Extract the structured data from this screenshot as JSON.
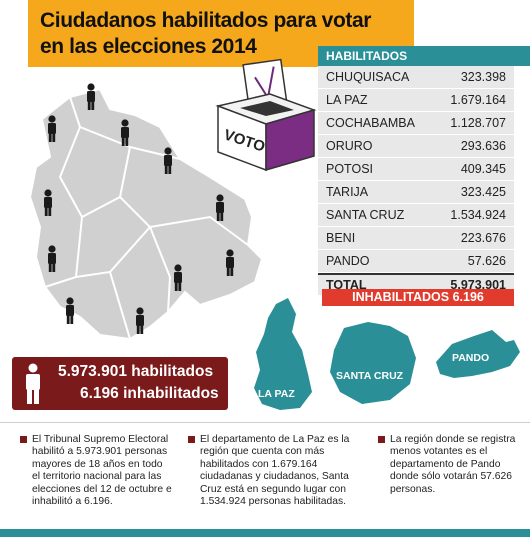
{
  "header": {
    "title_line1": "Ciudadanos habilitados para votar",
    "title_line2": "en las elecciones 2014"
  },
  "ballot": {
    "label": "VOTO"
  },
  "table": {
    "header": "HABILITADOS",
    "rows": [
      {
        "name": "CHUQUISACA",
        "value": "323.398"
      },
      {
        "name": "LA PAZ",
        "value": "1.679.164"
      },
      {
        "name": "COCHABAMBA",
        "value": "1.128.707"
      },
      {
        "name": "ORURO",
        "value": "293.636"
      },
      {
        "name": "POTOSI",
        "value": "409.345"
      },
      {
        "name": "TARIJA",
        "value": "323.425"
      },
      {
        "name": "SANTA CRUZ",
        "value": "1.534.924"
      },
      {
        "name": "BENI",
        "value": "223.676"
      },
      {
        "name": "PANDO",
        "value": "57.626"
      }
    ],
    "total_label": "TOTAL",
    "total_value": "5.973.901",
    "inhabilitados": "INHABILITADOS 6.196"
  },
  "summary": {
    "habilitados": "5.973.901 habilitados",
    "inhabilitados": "6.196 inhabilitados"
  },
  "regions": {
    "la_paz": "LA PAZ",
    "santa_cruz": "SANTA CRUZ",
    "pando": "PANDO"
  },
  "colors": {
    "orange": "#f5a81c",
    "teal": "#2a8f97",
    "maroon": "#7b1a1a",
    "red": "#e03b2c"
  },
  "notes": [
    "El Tribunal Supremo Electoral\nhabilitó a 5.973.901 personas\nmayores de 18 años en todo\nel territorio nacional para las\nelecciones del 12 de octubre e\ninhabilitó a 6.196.",
    "El departamento de La Paz es la\nregión que cuenta con más\nhabilitados con 1.679.164\nciudadanas y ciudadanos, Santa\nCruz está en segundo lugar con\n1.534.924 personas habilitadas.",
    "La región donde se registra\nmenos votantes es el\ndepartamento de Pando\ndonde sólo votarán 57.626\npersonas."
  ]
}
